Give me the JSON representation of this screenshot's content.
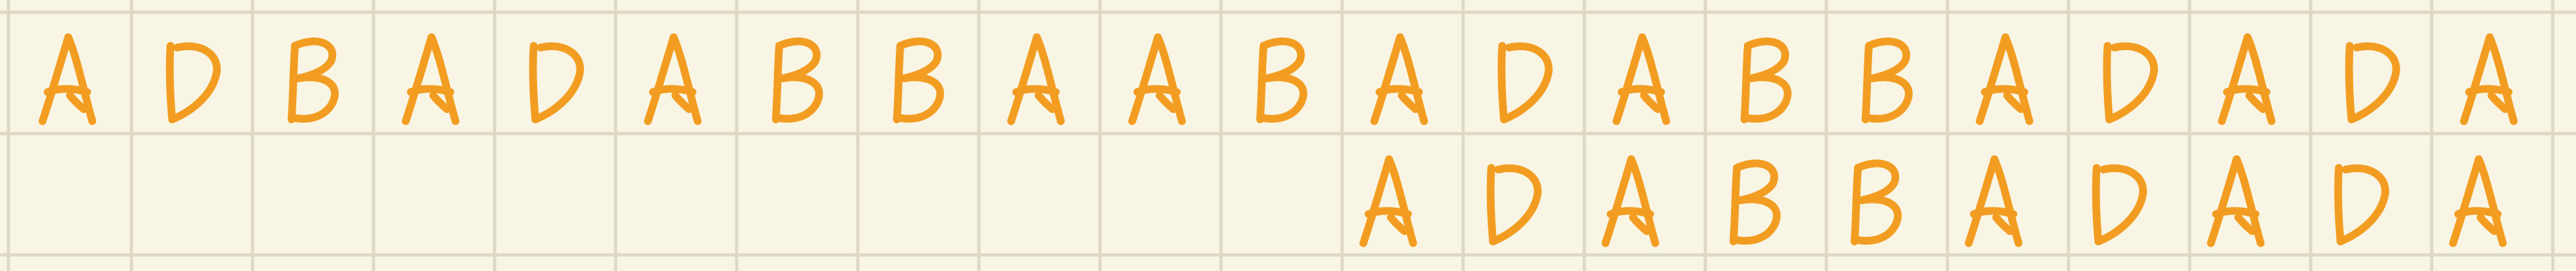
{
  "grid": {
    "line_color": "#ddd9c4",
    "background": "#f8f5e4"
  },
  "ink_color": "#f29d22",
  "rows": [
    {
      "name": "top-row",
      "letters": [
        "A",
        "D",
        "B",
        "A",
        "D",
        "A",
        "B",
        "B",
        "A",
        "A",
        "B",
        "A",
        "D",
        "A",
        "B",
        "B",
        "A",
        "D",
        "A",
        "D",
        "A"
      ]
    },
    {
      "name": "bottom-row",
      "letters": [
        "A",
        "D",
        "A",
        "B",
        "B",
        "A",
        "D",
        "A",
        "D",
        "A"
      ]
    }
  ]
}
